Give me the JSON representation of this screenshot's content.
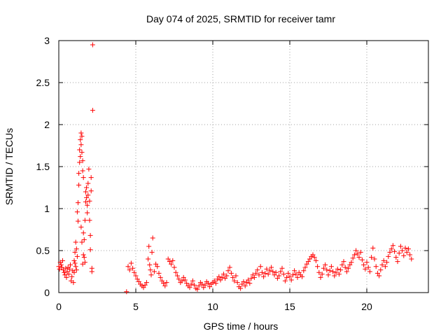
{
  "chart_data": {
    "type": "scatter",
    "title": "Day 074 of 2025, SRMTID for receiver tamr",
    "xlabel": "GPS time / hours",
    "ylabel": "SRMTID / TECUs",
    "xlim": [
      0,
      24
    ],
    "ylim": [
      0,
      3
    ],
    "x_ticks": [
      0,
      5,
      10,
      15,
      20
    ],
    "x_tick_labels": [
      "0",
      "5",
      "10",
      "15",
      "20"
    ],
    "y_ticks": [
      0,
      0.5,
      1,
      1.5,
      2,
      2.5,
      3
    ],
    "y_tick_labels": [
      "0",
      "0.5",
      "1",
      "1.5",
      "2",
      "2.5",
      "3"
    ],
    "grid": true,
    "marker": "+",
    "color": "#ff0000",
    "series": [
      {
        "name": "SRMTID",
        "points": [
          [
            0.0,
            0.31
          ],
          [
            0.05,
            0.28
          ],
          [
            0.1,
            0.36
          ],
          [
            0.15,
            0.33
          ],
          [
            0.2,
            0.3
          ],
          [
            0.25,
            0.38
          ],
          [
            0.3,
            0.27
          ],
          [
            0.35,
            0.24
          ],
          [
            0.4,
            0.21
          ],
          [
            0.45,
            0.29
          ],
          [
            0.5,
            0.18
          ],
          [
            0.55,
            0.25
          ],
          [
            0.6,
            0.3
          ],
          [
            0.65,
            0.22
          ],
          [
            0.7,
            0.28
          ],
          [
            0.75,
            0.33
          ],
          [
            0.8,
            0.14
          ],
          [
            0.85,
            0.19
          ],
          [
            0.9,
            0.26
          ],
          [
            0.95,
            0.12
          ],
          [
            1.0,
            0.24
          ],
          [
            1.05,
            0.35
          ],
          [
            1.1,
            0.31
          ],
          [
            1.15,
            0.27
          ],
          [
            1.0,
            0.38
          ],
          [
            1.05,
            0.48
          ],
          [
            1.1,
            0.6
          ],
          [
            1.15,
            0.52
          ],
          [
            1.2,
            0.43
          ],
          [
            1.2,
            0.96
          ],
          [
            1.25,
            1.07
          ],
          [
            1.25,
            0.85
          ],
          [
            1.3,
            1.42
          ],
          [
            1.3,
            1.28
          ],
          [
            1.35,
            1.55
          ],
          [
            1.35,
            1.7
          ],
          [
            1.4,
            1.62
          ],
          [
            1.4,
            1.82
          ],
          [
            1.45,
            1.9
          ],
          [
            1.45,
            1.76
          ],
          [
            1.5,
            1.86
          ],
          [
            1.5,
            1.67
          ],
          [
            1.55,
            1.57
          ],
          [
            1.55,
            1.45
          ],
          [
            1.6,
            1.37
          ],
          [
            1.6,
            0.71
          ],
          [
            1.65,
            0.63
          ],
          [
            1.65,
            0.42
          ],
          [
            1.7,
            0.36
          ],
          [
            1.7,
            0.86
          ],
          [
            1.75,
            1.08
          ],
          [
            1.75,
            1.2
          ],
          [
            1.8,
            1.25
          ],
          [
            1.8,
            1.13
          ],
          [
            1.85,
            1.04
          ],
          [
            1.85,
            0.95
          ],
          [
            1.9,
            1.3
          ],
          [
            1.9,
            1.16
          ],
          [
            1.95,
            1.47
          ],
          [
            2.0,
            1.09
          ],
          [
            2.0,
            0.86
          ],
          [
            2.05,
            0.68
          ],
          [
            2.05,
            0.51
          ],
          [
            2.1,
            1.37
          ],
          [
            2.1,
            1.21
          ],
          [
            2.15,
            0.29
          ],
          [
            2.15,
            0.25
          ],
          [
            2.2,
            2.95
          ],
          [
            2.2,
            2.17
          ],
          [
            1.55,
            0.34
          ],
          [
            1.6,
            0.45
          ],
          [
            1.5,
            0.6
          ],
          [
            1.45,
            0.78
          ],
          [
            4.4,
            0.01
          ],
          [
            4.5,
            0.31
          ],
          [
            4.6,
            0.27
          ],
          [
            4.7,
            0.35
          ],
          [
            4.8,
            0.29
          ],
          [
            4.9,
            0.24
          ],
          [
            5.0,
            0.2
          ],
          [
            5.1,
            0.16
          ],
          [
            5.2,
            0.13
          ],
          [
            5.3,
            0.1
          ],
          [
            5.4,
            0.08
          ],
          [
            5.5,
            0.06
          ],
          [
            5.6,
            0.09
          ],
          [
            5.7,
            0.12
          ],
          [
            5.8,
            0.4
          ],
          [
            5.85,
            0.55
          ],
          [
            5.9,
            0.33
          ],
          [
            5.95,
            0.27
          ],
          [
            6.0,
            0.21
          ],
          [
            6.05,
            0.48
          ],
          [
            6.1,
            0.65
          ],
          [
            6.2,
            0.25
          ],
          [
            6.3,
            0.34
          ],
          [
            6.4,
            0.31
          ],
          [
            6.5,
            0.23
          ],
          [
            6.6,
            0.18
          ],
          [
            6.7,
            0.14
          ],
          [
            6.8,
            0.11
          ],
          [
            6.9,
            0.08
          ],
          [
            7.0,
            0.12
          ],
          [
            7.1,
            0.4
          ],
          [
            7.2,
            0.37
          ],
          [
            7.3,
            0.34
          ],
          [
            7.4,
            0.38
          ],
          [
            7.5,
            0.3
          ],
          [
            7.6,
            0.24
          ],
          [
            7.7,
            0.2
          ],
          [
            7.8,
            0.16
          ],
          [
            7.9,
            0.12
          ],
          [
            8.0,
            0.14
          ],
          [
            8.1,
            0.18
          ],
          [
            8.2,
            0.15
          ],
          [
            8.3,
            0.11
          ],
          [
            8.4,
            0.08
          ],
          [
            8.5,
            0.06
          ],
          [
            8.6,
            0.1
          ],
          [
            8.7,
            0.14
          ],
          [
            8.8,
            0.09
          ],
          [
            8.9,
            0.05
          ],
          [
            9.0,
            0.04
          ],
          [
            9.1,
            0.08
          ],
          [
            9.2,
            0.12
          ],
          [
            9.3,
            0.1
          ],
          [
            9.4,
            0.06
          ],
          [
            9.5,
            0.09
          ],
          [
            9.6,
            0.13
          ],
          [
            9.7,
            0.11
          ],
          [
            9.8,
            0.07
          ],
          [
            9.9,
            0.1
          ],
          [
            10.0,
            0.12
          ],
          [
            10.1,
            0.14
          ],
          [
            10.2,
            0.11
          ],
          [
            10.3,
            0.16
          ],
          [
            10.4,
            0.19
          ],
          [
            10.5,
            0.15
          ],
          [
            10.6,
            0.18
          ],
          [
            10.7,
            0.22
          ],
          [
            10.8,
            0.17
          ],
          [
            10.9,
            0.2
          ],
          [
            11.0,
            0.26
          ],
          [
            11.1,
            0.3
          ],
          [
            11.2,
            0.23
          ],
          [
            11.3,
            0.18
          ],
          [
            11.4,
            0.14
          ],
          [
            11.5,
            0.2
          ],
          [
            11.6,
            0.12
          ],
          [
            11.7,
            0.07
          ],
          [
            11.8,
            0.05
          ],
          [
            11.9,
            0.1
          ],
          [
            12.0,
            0.13
          ],
          [
            12.1,
            0.08
          ],
          [
            12.2,
            0.12
          ],
          [
            12.3,
            0.15
          ],
          [
            12.4,
            0.11
          ],
          [
            12.5,
            0.17
          ],
          [
            12.6,
            0.21
          ],
          [
            12.7,
            0.18
          ],
          [
            12.8,
            0.23
          ],
          [
            12.9,
            0.27
          ],
          [
            13.0,
            0.21
          ],
          [
            13.1,
            0.31
          ],
          [
            13.2,
            0.24
          ],
          [
            13.3,
            0.19
          ],
          [
            13.4,
            0.23
          ],
          [
            13.5,
            0.28
          ],
          [
            13.6,
            0.22
          ],
          [
            13.7,
            0.26
          ],
          [
            13.8,
            0.3
          ],
          [
            13.9,
            0.25
          ],
          [
            14.0,
            0.21
          ],
          [
            14.1,
            0.24
          ],
          [
            14.2,
            0.17
          ],
          [
            14.3,
            0.2
          ],
          [
            14.4,
            0.25
          ],
          [
            14.5,
            0.29
          ],
          [
            14.6,
            0.22
          ],
          [
            14.7,
            0.14
          ],
          [
            14.8,
            0.18
          ],
          [
            14.9,
            0.23
          ],
          [
            15.0,
            0.19
          ],
          [
            15.1,
            0.15
          ],
          [
            15.2,
            0.21
          ],
          [
            15.3,
            0.26
          ],
          [
            15.4,
            0.22
          ],
          [
            15.5,
            0.18
          ],
          [
            15.6,
            0.24
          ],
          [
            15.7,
            0.21
          ],
          [
            15.8,
            0.19
          ],
          [
            15.9,
            0.26
          ],
          [
            16.0,
            0.3
          ],
          [
            16.1,
            0.34
          ],
          [
            16.2,
            0.37
          ],
          [
            16.3,
            0.4
          ],
          [
            16.4,
            0.43
          ],
          [
            16.5,
            0.45
          ],
          [
            16.6,
            0.42
          ],
          [
            16.7,
            0.38
          ],
          [
            16.8,
            0.31
          ],
          [
            16.9,
            0.24
          ],
          [
            17.0,
            0.18
          ],
          [
            17.1,
            0.22
          ],
          [
            17.2,
            0.29
          ],
          [
            17.3,
            0.33
          ],
          [
            17.4,
            0.27
          ],
          [
            17.5,
            0.21
          ],
          [
            17.6,
            0.26
          ],
          [
            17.7,
            0.31
          ],
          [
            17.8,
            0.25
          ],
          [
            17.9,
            0.2
          ],
          [
            18.0,
            0.24
          ],
          [
            18.1,
            0.28
          ],
          [
            18.2,
            0.22
          ],
          [
            18.3,
            0.27
          ],
          [
            18.4,
            0.33
          ],
          [
            18.5,
            0.37
          ],
          [
            18.6,
            0.3
          ],
          [
            18.7,
            0.25
          ],
          [
            18.8,
            0.29
          ],
          [
            18.9,
            0.33
          ],
          [
            19.0,
            0.36
          ],
          [
            19.1,
            0.41
          ],
          [
            19.2,
            0.45
          ],
          [
            19.3,
            0.5
          ],
          [
            19.4,
            0.46
          ],
          [
            19.5,
            0.42
          ],
          [
            19.6,
            0.48
          ],
          [
            19.7,
            0.39
          ],
          [
            19.8,
            0.33
          ],
          [
            19.9,
            0.28
          ],
          [
            20.0,
            0.36
          ],
          [
            20.1,
            0.3
          ],
          [
            20.2,
            0.25
          ],
          [
            20.3,
            0.42
          ],
          [
            20.4,
            0.53
          ],
          [
            20.5,
            0.4
          ],
          [
            20.6,
            0.31
          ],
          [
            20.7,
            0.23
          ],
          [
            20.8,
            0.2
          ],
          [
            20.9,
            0.27
          ],
          [
            21.0,
            0.33
          ],
          [
            21.1,
            0.38
          ],
          [
            21.2,
            0.31
          ],
          [
            21.3,
            0.36
          ],
          [
            21.4,
            0.43
          ],
          [
            21.5,
            0.48
          ],
          [
            21.6,
            0.52
          ],
          [
            21.7,
            0.56
          ],
          [
            21.8,
            0.49
          ],
          [
            21.9,
            0.42
          ],
          [
            22.0,
            0.37
          ],
          [
            22.1,
            0.47
          ],
          [
            22.2,
            0.55
          ],
          [
            22.3,
            0.5
          ],
          [
            22.4,
            0.44
          ],
          [
            22.5,
            0.53
          ],
          [
            22.6,
            0.48
          ],
          [
            22.7,
            0.52
          ],
          [
            22.8,
            0.45
          ],
          [
            22.9,
            0.4
          ]
        ]
      }
    ]
  }
}
